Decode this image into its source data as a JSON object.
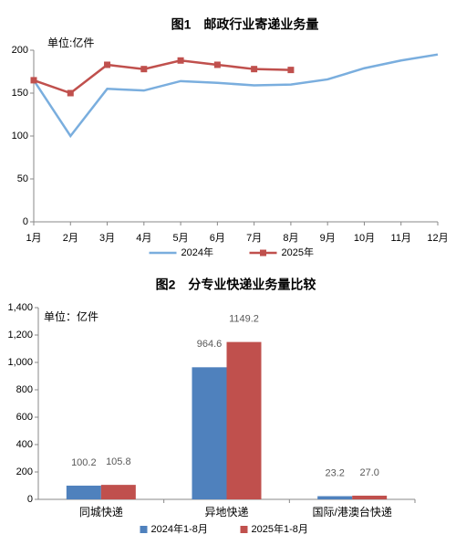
{
  "chart_data": [
    {
      "type": "line",
      "title": "图1　邮政行业寄递业务量",
      "unit": "单位:亿件",
      "categories": [
        "1月",
        "2月",
        "3月",
        "4月",
        "5月",
        "6月",
        "7月",
        "8月",
        "9月",
        "10月",
        "11月",
        "12月"
      ],
      "series": [
        {
          "name": "2024年",
          "color": "#7aaede",
          "values": [
            165,
            100,
            155,
            153,
            164,
            162,
            159,
            160,
            166,
            179,
            188,
            195
          ]
        },
        {
          "name": "2025年",
          "color": "#c0504d",
          "values": [
            165,
            150,
            183,
            178,
            188,
            183,
            178,
            177,
            null,
            null,
            null,
            null
          ]
        }
      ],
      "ylim": [
        0,
        200
      ],
      "yticks": [
        0,
        50,
        100,
        150,
        200
      ],
      "grid": false,
      "legend": "bottom"
    },
    {
      "type": "bar",
      "title": "图2　分专业快递业务量比较",
      "unit": "单位：亿件",
      "categories": [
        "同城快递",
        "异地快递",
        "国际/港澳台快递"
      ],
      "series": [
        {
          "name": "2024年1-8月",
          "color": "#4f81bd",
          "values": [
            100.2,
            964.6,
            23.2
          ]
        },
        {
          "name": "2025年1-8月",
          "color": "#c0504d",
          "values": [
            105.8,
            1149.2,
            27.0
          ],
          "value_labels": [
            "105.8",
            "1149.2",
            "27.0"
          ]
        }
      ],
      "ylim": [
        0,
        1400
      ],
      "yticks": [
        0,
        200,
        400,
        600,
        800,
        {
          "value": 1000,
          "label": "1,000"
        },
        {
          "value": 1200,
          "label": "1,200"
        },
        {
          "value": 1400,
          "label": "1,400"
        }
      ],
      "grid": false,
      "legend": "bottom"
    }
  ]
}
